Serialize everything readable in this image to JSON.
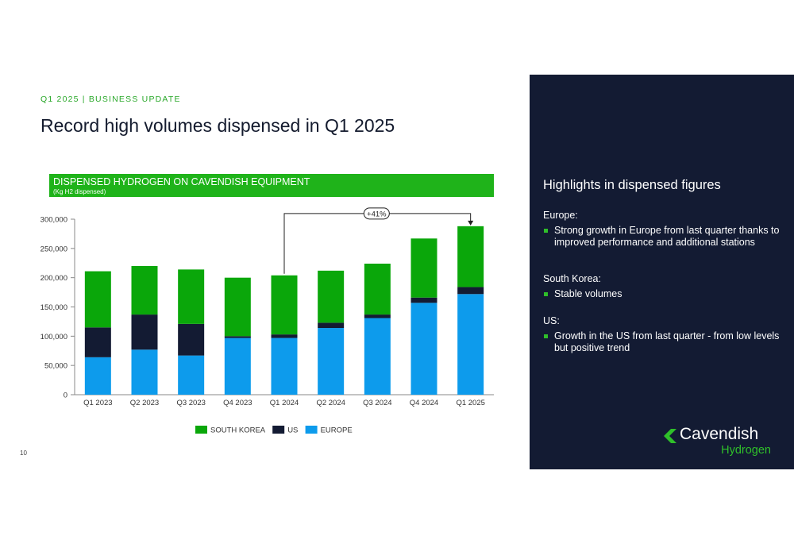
{
  "header": {
    "eyebrow": "Q1 2025 | BUSINESS UPDATE",
    "title": "Record high volumes dispensed in Q1 2025"
  },
  "chart_banner": {
    "title": "DISPENSED HYDROGEN ON CAVENDISH EQUIPMENT",
    "subtitle": "(Kg H2 dispensed)"
  },
  "chart_data": {
    "type": "bar",
    "stacked": true,
    "categories": [
      "Q1 2023",
      "Q2 2023",
      "Q3 2023",
      "Q4 2023",
      "Q1 2024",
      "Q2 2024",
      "Q3 2024",
      "Q4 2024",
      "Q1 2025"
    ],
    "series": [
      {
        "name": "EUROPE",
        "color": "#0d9bec",
        "values": [
          64000,
          77000,
          67000,
          97000,
          97000,
          114000,
          131000,
          157000,
          172000
        ]
      },
      {
        "name": "US",
        "color": "#131b33",
        "values": [
          51000,
          60000,
          54000,
          3000,
          6000,
          9000,
          6000,
          9000,
          12000
        ]
      },
      {
        "name": "SOUTH KOREA",
        "color": "#0aa70a",
        "values": [
          96000,
          83000,
          93000,
          100000,
          101000,
          89000,
          87000,
          101000,
          104000
        ]
      }
    ],
    "y_ticks": [
      "0",
      "50,000",
      "100,000",
      "150,000",
      "200,000",
      "250,000",
      "300,000"
    ],
    "ylim": [
      0,
      300000
    ],
    "grid": false,
    "legend": {
      "position": "bottom",
      "items": [
        {
          "label": "SOUTH KOREA",
          "color": "#0aa70a"
        },
        {
          "label": "US",
          "color": "#131b33"
        },
        {
          "label": "EUROPE",
          "color": "#0d9bec"
        }
      ]
    },
    "annotation": {
      "text": "+41%",
      "from": "Q1 2024",
      "to": "Q1 2025"
    }
  },
  "page_number": "10",
  "panel": {
    "heading": "Highlights in dispensed figures",
    "sections": [
      {
        "title": "Europe:",
        "bullets": [
          "Strong growth in Europe from last quarter thanks to improved performance and additional stations"
        ]
      },
      {
        "title": "South Korea:",
        "bullets": [
          "Stable volumes"
        ]
      },
      {
        "title": "US:",
        "bullets": [
          "Growth in the US from last quarter -  from low levels but positive trend"
        ]
      }
    ],
    "logo": {
      "name": "Cavendish",
      "sub": "Hydrogen"
    }
  }
}
